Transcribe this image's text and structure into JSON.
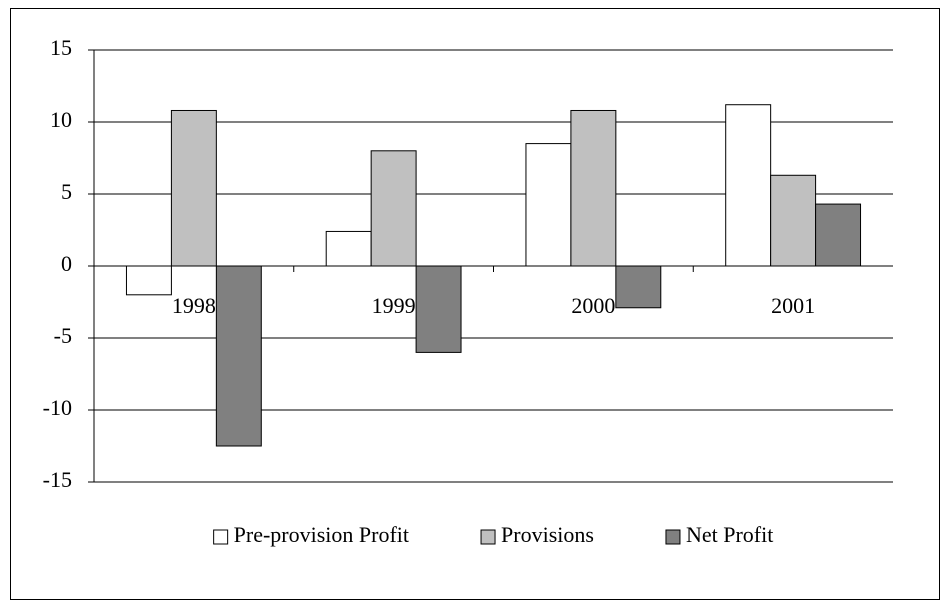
{
  "chart_data": {
    "type": "bar",
    "categories": [
      "1998",
      "1999",
      "2000",
      "2001"
    ],
    "series": [
      {
        "name": "Pre-provision Profit",
        "color": "#ffffff",
        "values": [
          -2.0,
          2.4,
          8.5,
          11.2
        ]
      },
      {
        "name": "Provisions",
        "color": "#c0c0c0",
        "values": [
          10.8,
          8.0,
          10.8,
          6.3
        ]
      },
      {
        "name": "Net Profit",
        "color": "#808080",
        "values": [
          -12.5,
          -6.0,
          -2.9,
          4.3
        ]
      }
    ],
    "ylim": [
      -15,
      15
    ],
    "yticks": [
      -15,
      -10,
      -5,
      0,
      5,
      10,
      15
    ],
    "grid": true,
    "legend": "bottom"
  }
}
